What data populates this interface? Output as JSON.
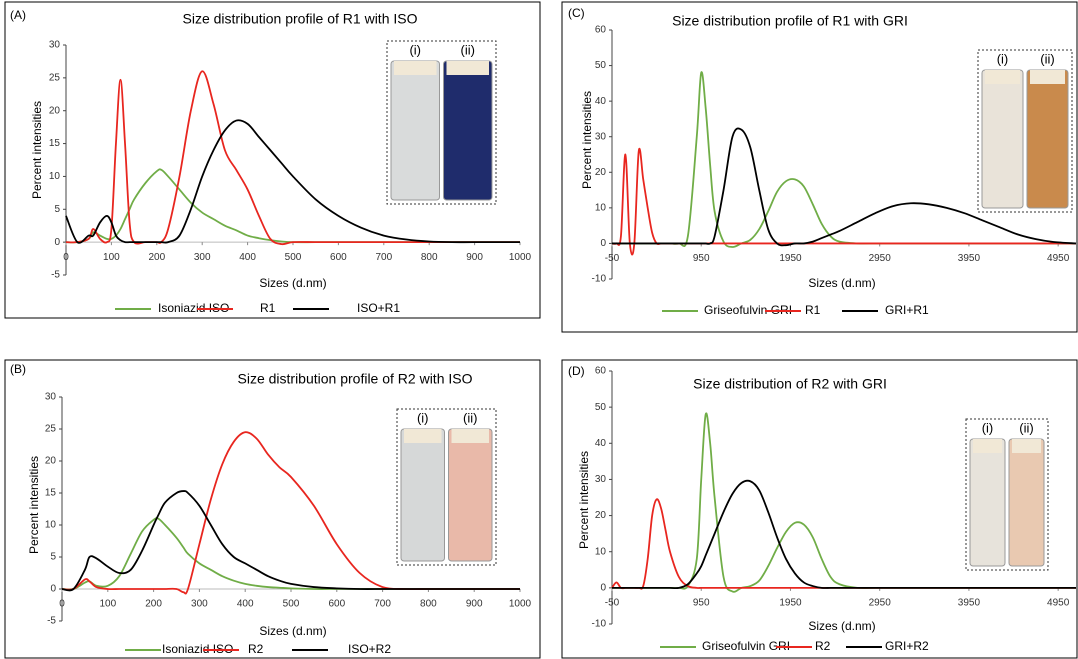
{
  "chart_data": [
    {
      "type": "line",
      "label": "(A)",
      "title": "Size distribution profile of R1 with ISO",
      "x_label": "Sizes (d.nm)",
      "y_label": "Percent intensities",
      "inset_labels": [
        "(i)",
        "(ii)"
      ],
      "x": [
        0,
        25,
        50,
        60,
        75,
        90,
        100,
        110,
        120,
        130,
        140,
        150,
        175,
        200,
        210,
        225,
        250,
        275,
        300,
        325,
        350,
        375,
        400,
        425,
        450,
        475,
        500,
        550,
        600,
        650,
        700,
        750,
        800,
        850,
        900,
        1000
      ],
      "series": [
        {
          "name": "Isoniazid ISO",
          "color": "#70ad47",
          "values": [
            0,
            0,
            0.5,
            1.5,
            1,
            0.5,
            0.5,
            1,
            2,
            3.5,
            5,
            6.5,
            9,
            10.8,
            11,
            10,
            8,
            6,
            4.5,
            3.5,
            2.5,
            1.8,
            1,
            0.6,
            0.3,
            0.1,
            0,
            0,
            0,
            0,
            0,
            0,
            0,
            0,
            0,
            0
          ]
        },
        {
          "name": "R1",
          "color": "#e8261f",
          "values": [
            0,
            0,
            0.5,
            2,
            0.5,
            0,
            2,
            15,
            24.7,
            15,
            3,
            0,
            0,
            0,
            0,
            2,
            10,
            20,
            26,
            21,
            14,
            11,
            8,
            4,
            0.5,
            -0.3,
            0,
            0,
            0,
            0,
            0,
            0,
            0,
            0,
            0,
            0
          ]
        },
        {
          "name": "ISO+R1",
          "color": "#000000",
          "values": [
            4,
            0,
            1,
            1,
            3,
            4,
            3,
            1,
            0.3,
            0,
            0,
            0,
            0,
            0,
            0,
            0,
            1,
            5,
            10,
            14,
            17,
            18.5,
            18,
            16,
            14,
            12,
            10,
            6.5,
            4,
            2.2,
            1,
            0.4,
            0.1,
            0,
            0,
            0
          ]
        }
      ],
      "xlim": [
        0,
        1000
      ],
      "xticks": [
        0,
        100,
        200,
        300,
        400,
        500,
        600,
        700,
        800,
        900,
        1000
      ],
      "ylim": [
        -5,
        30
      ],
      "yticks": [
        -5,
        0,
        5,
        10,
        15,
        20,
        25,
        30
      ]
    },
    {
      "type": "line",
      "label": "(C)",
      "title": "Size distribution profile of R1 with GRI",
      "x_label": "Sizes (d.nm)",
      "y_label": "Percent intensities",
      "inset_labels": [
        "(i)",
        "(ii)"
      ],
      "x": [
        -50,
        0,
        50,
        100,
        150,
        200,
        250,
        300,
        350,
        400,
        450,
        500,
        550,
        600,
        700,
        800,
        900,
        950,
        1000,
        1050,
        1100,
        1200,
        1300,
        1400,
        1500,
        1600,
        1700,
        1800,
        1900,
        2000,
        2100,
        2200,
        2300,
        2400,
        2500,
        2700,
        2900,
        3100,
        3300,
        3500,
        3700,
        3900,
        4100,
        4300,
        4500,
        4700,
        4900,
        5150
      ],
      "series": [
        {
          "name": "Griseofulvin GRI",
          "color": "#70ad47",
          "values": [
            0,
            0,
            0,
            0,
            0,
            0,
            0,
            0,
            0,
            0,
            0,
            0,
            0,
            0,
            0,
            2,
            30,
            48,
            38,
            22,
            9,
            0.5,
            -1,
            0,
            1,
            4,
            9,
            14.5,
            17.5,
            18,
            16,
            11,
            5.5,
            2,
            0.5,
            0,
            0,
            0,
            0,
            0,
            0,
            0,
            0,
            0,
            0,
            0,
            0,
            0
          ]
        },
        {
          "name": "R1",
          "color": "#e8261f",
          "values": [
            0,
            0,
            2,
            25,
            0,
            0,
            26,
            18,
            10,
            3,
            0,
            0,
            0,
            0,
            0,
            0,
            0,
            0,
            0,
            0,
            0,
            0,
            0,
            0,
            0,
            0,
            0,
            0,
            0,
            0,
            0,
            0,
            0,
            0,
            0,
            0,
            0,
            0,
            0,
            0,
            0,
            0,
            0,
            0,
            0,
            0,
            0,
            0
          ]
        },
        {
          "name": "GRI+R1",
          "color": "#000000",
          "values": [
            0,
            0,
            0,
            0,
            0,
            0,
            0,
            0,
            0,
            0,
            0,
            0,
            0,
            0,
            0,
            0,
            0,
            0,
            0,
            0,
            2,
            15,
            30,
            32,
            27,
            15,
            4,
            0,
            -0.5,
            0,
            0,
            0.5,
            1.5,
            2.5,
            3.5,
            6,
            8.5,
            10.5,
            11.3,
            11,
            10,
            8.5,
            6.5,
            4.5,
            2.5,
            1.2,
            0.4,
            0
          ]
        }
      ],
      "xlim": [
        -50,
        5150
      ],
      "xticks": [
        -50,
        950,
        1950,
        2950,
        3950,
        4950
      ],
      "ylim": [
        -10,
        60
      ],
      "yticks": [
        -10,
        0,
        10,
        20,
        30,
        40,
        50,
        60
      ]
    },
    {
      "type": "line",
      "label": "(B)",
      "title": "Size distribution profile of R2 with ISO",
      "x_label": "Sizes (d.nm)",
      "y_label": "Percent intensities",
      "inset_labels": [
        "(i)",
        "(ii)"
      ],
      "x": [
        0,
        25,
        50,
        60,
        75,
        100,
        125,
        150,
        175,
        200,
        210,
        225,
        250,
        265,
        275,
        300,
        325,
        350,
        375,
        400,
        425,
        450,
        475,
        500,
        550,
        600,
        650,
        700,
        750,
        800,
        850,
        900,
        1000
      ],
      "series": [
        {
          "name": "Isoniazid ISO",
          "color": "#70ad47",
          "values": [
            0,
            0,
            1,
            1.2,
            0.5,
            0.5,
            2,
            5.5,
            9,
            10.8,
            11,
            10,
            8,
            6.5,
            5.5,
            4,
            3,
            2,
            1.3,
            0.8,
            0.5,
            0.3,
            0.2,
            0.1,
            0,
            0,
            0,
            0,
            0,
            0,
            0,
            0,
            0
          ]
        },
        {
          "name": "R2",
          "color": "#e8261f",
          "values": [
            0,
            0,
            1.5,
            1.2,
            0.3,
            0,
            0,
            0,
            0,
            0,
            0,
            0,
            0,
            -0.5,
            0,
            7,
            14,
            19.5,
            23,
            24.5,
            23.5,
            21,
            19,
            17.5,
            13,
            7,
            2.5,
            0.3,
            0,
            0,
            0,
            0,
            0
          ]
        },
        {
          "name": "ISO+R2",
          "color": "#000000",
          "values": [
            0,
            0,
            3,
            5,
            4.8,
            3.5,
            2.5,
            3,
            6,
            10,
            11.5,
            13.5,
            15,
            15.3,
            15,
            13,
            10,
            7,
            5,
            4,
            3,
            2,
            1.3,
            0.8,
            0.3,
            0.1,
            0,
            0,
            0,
            0,
            0,
            0,
            0
          ]
        }
      ],
      "xlim": [
        0,
        1000
      ],
      "xticks": [
        0,
        100,
        200,
        300,
        400,
        500,
        600,
        700,
        800,
        900,
        1000
      ],
      "ylim": [
        -5,
        30
      ],
      "yticks": [
        -5,
        0,
        5,
        10,
        15,
        20,
        25,
        30
      ]
    },
    {
      "type": "line",
      "label": "(D)",
      "title": "Size distribution of R2 with GRI",
      "x_label": "Sizes (d.nm)",
      "y_label": "Percent intensities",
      "inset_labels": [
        "(i)",
        "(ii)"
      ],
      "x": [
        -50,
        0,
        50,
        100,
        150,
        200,
        250,
        300,
        350,
        400,
        450,
        500,
        550,
        600,
        700,
        800,
        900,
        950,
        1000,
        1050,
        1100,
        1200,
        1300,
        1400,
        1500,
        1600,
        1700,
        1800,
        1900,
        2000,
        2100,
        2200,
        2300,
        2400,
        2500,
        2700,
        2900,
        3100,
        3300,
        3500,
        3700,
        3900,
        4100,
        4300,
        4500,
        4700,
        4900,
        5150
      ],
      "series": [
        {
          "name": "Griseofulvin GRI",
          "color": "#70ad47",
          "values": [
            0,
            0,
            0,
            0,
            0,
            0,
            0,
            0,
            0,
            0,
            0,
            0,
            0,
            0,
            0,
            0.5,
            8,
            30,
            48,
            40,
            25,
            3,
            -1,
            0,
            0.5,
            2,
            6,
            11,
            15.5,
            18,
            17.5,
            14,
            8,
            3,
            1,
            0,
            0,
            0,
            0,
            0,
            0,
            0,
            0,
            0,
            0,
            0,
            0,
            0
          ]
        },
        {
          "name": "R2",
          "color": "#e8261f",
          "values": [
            0,
            1.5,
            0,
            0,
            0,
            0,
            0,
            0.5,
            8,
            20,
            24.5,
            22,
            16,
            10,
            3,
            0.5,
            0,
            0,
            0,
            0,
            0,
            0,
            0,
            0,
            0,
            0,
            0,
            0,
            0,
            0,
            0,
            0,
            0,
            0,
            0,
            0,
            0,
            0,
            0,
            0,
            0,
            0,
            0,
            0,
            0,
            0,
            0,
            0
          ]
        },
        {
          "name": "GRI+R2",
          "color": "#000000",
          "values": [
            0,
            0,
            0,
            0,
            0,
            0,
            0,
            0,
            0,
            0,
            0,
            0,
            0,
            0,
            0,
            1,
            4,
            6,
            9,
            12,
            15,
            21,
            26,
            29,
            29.5,
            27,
            21,
            14,
            8,
            4,
            1.5,
            0.5,
            0,
            0,
            0,
            0,
            0,
            0,
            0,
            0,
            0,
            0,
            0,
            0,
            0,
            0,
            0,
            0
          ]
        }
      ],
      "xlim": [
        -50,
        5150
      ],
      "xticks": [
        -50,
        950,
        1950,
        2950,
        3950,
        4950
      ],
      "ylim": [
        -10,
        60
      ],
      "yticks": [
        -10,
        0,
        10,
        20,
        30,
        40,
        50,
        60
      ]
    }
  ]
}
